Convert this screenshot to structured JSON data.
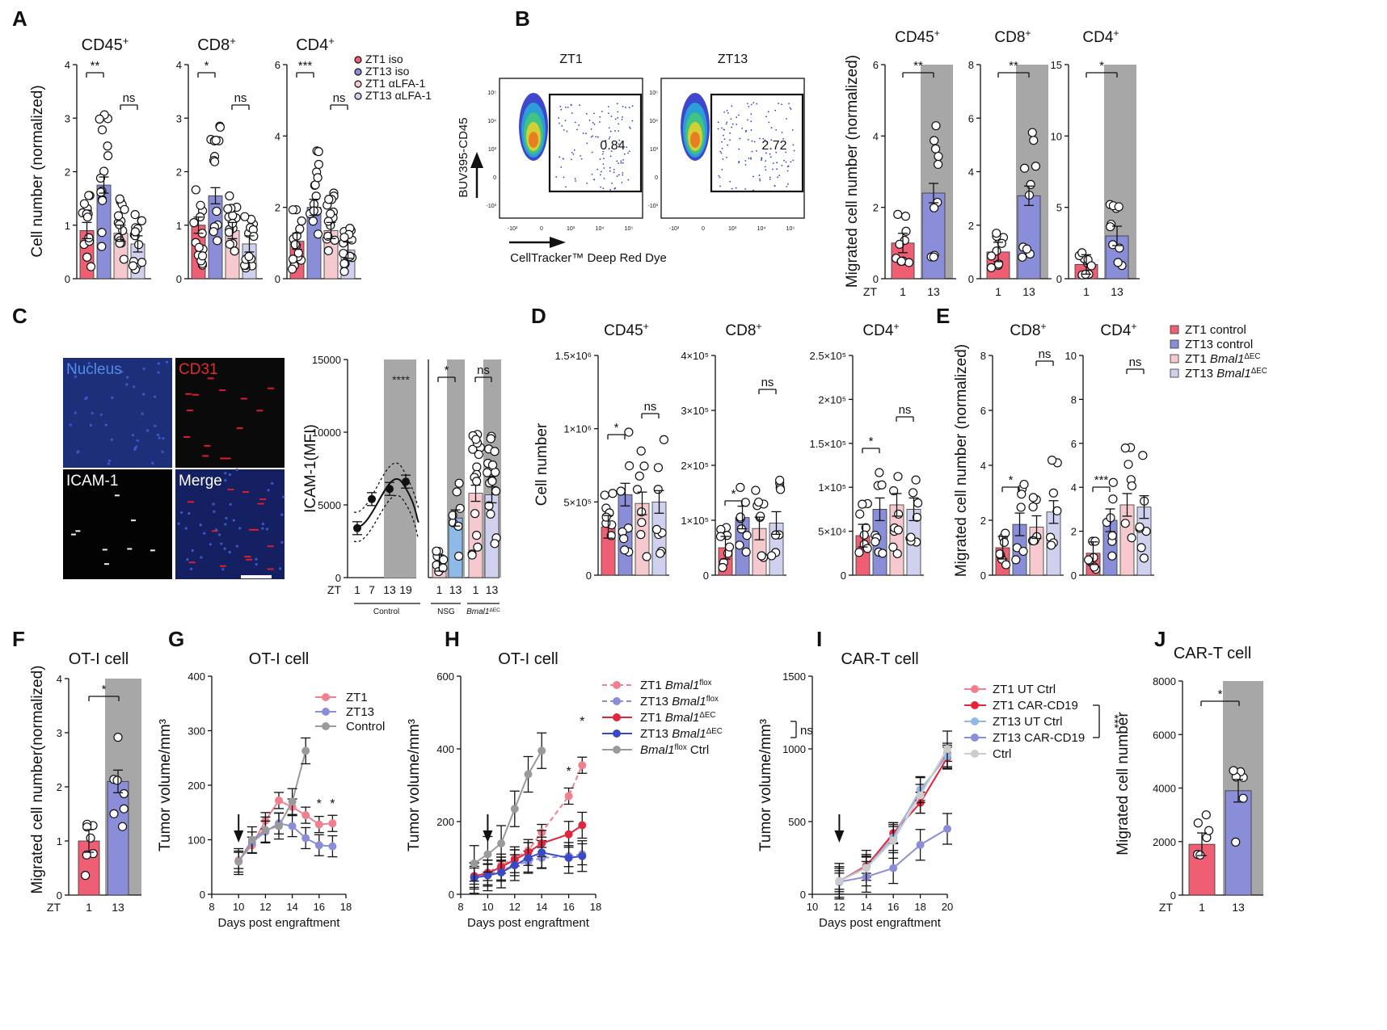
{
  "panels": {
    "A": "A",
    "B": "B",
    "C": "C",
    "D": "D",
    "E": "E",
    "F": "F",
    "G": "G",
    "H": "H",
    "I": "I",
    "J": "J"
  },
  "colors": {
    "zt1": "#ee5f73",
    "zt13": "#8a8ed8",
    "zt1_light": "#f6c9cf",
    "zt13_light": "#cfd1ee",
    "gray_bg": "#a7a7a7",
    "dark_gray": "#8c8c8c",
    "red_dark": "#e0253c",
    "blue_dark": "#3b48c6",
    "light_blue": "#8fb9e6",
    "light_gray": "#cccccc"
  },
  "chart_data": [
    {
      "id": "A",
      "type": "bar",
      "ylabel": "Cell number (normalized)",
      "legend": [
        "ZT1 iso",
        "ZT13 iso",
        "ZT1 αLFA-1",
        "ZT13 αLFA-1"
      ],
      "subplots": [
        {
          "title": "CD45",
          "title_sup": "+",
          "ylim": [
            0,
            4
          ],
          "yticks": [
            "0",
            "1",
            "2",
            "3",
            "4"
          ],
          "values": [
            0.9,
            1.75,
            0.85,
            0.65
          ],
          "sig": [
            {
              "a": 0,
              "b": 1,
              "label": "**"
            },
            {
              "a": 2,
              "b": 3,
              "label": "ns"
            }
          ]
        },
        {
          "title": "CD8",
          "title_sup": "+",
          "ylim": [
            0,
            4
          ],
          "yticks": [
            "0",
            "1",
            "2",
            "3",
            "4"
          ],
          "values": [
            1.0,
            1.55,
            0.9,
            0.65
          ],
          "sig": [
            {
              "a": 0,
              "b": 1,
              "label": "*"
            },
            {
              "a": 2,
              "b": 3,
              "label": "ns"
            }
          ]
        },
        {
          "title": "CD4",
          "title_sup": "+",
          "ylim": [
            0,
            6
          ],
          "yticks": [
            "0",
            "2",
            "4",
            "6"
          ],
          "values": [
            1.05,
            2.0,
            1.35,
            0.8
          ],
          "sig": [
            {
              "a": 0,
              "b": 1,
              "label": "***"
            },
            {
              "a": 2,
              "b": 3,
              "label": "ns"
            }
          ]
        }
      ]
    },
    {
      "id": "B_flow",
      "type": "scatter",
      "ylabel": "BUV395-CD45",
      "xlabel": "CellTracker™ Deep Red Dye",
      "subplots": [
        {
          "title": "ZT1",
          "gate_value": "0.84"
        },
        {
          "title": "ZT13",
          "gate_value": "2.72"
        }
      ],
      "yticks": [
        "10⁵",
        "10⁴",
        "10³",
        "0",
        "-10³"
      ],
      "xticks": [
        "-10³",
        "0",
        "10³",
        "10⁴",
        "10⁵"
      ]
    },
    {
      "id": "B",
      "type": "bar",
      "ylabel": "Migrated cell number (normalized)",
      "xaxis_name": "ZT",
      "categories": [
        "1",
        "13"
      ],
      "subplots": [
        {
          "title": "CD45",
          "title_sup": "+",
          "ylim": [
            0,
            6
          ],
          "yticks": [
            "0",
            "2",
            "4",
            "6"
          ],
          "values": [
            1.0,
            2.4
          ],
          "sig": "**"
        },
        {
          "title": "CD8",
          "title_sup": "+",
          "ylim": [
            0,
            8
          ],
          "yticks": [
            "0",
            "2",
            "4",
            "6",
            "8"
          ],
          "values": [
            1.0,
            3.1
          ],
          "sig": "**"
        },
        {
          "title": "CD4",
          "title_sup": "+",
          "ylim": [
            0,
            15
          ],
          "yticks": [
            "0",
            "5",
            "10",
            "15"
          ],
          "values": [
            1.0,
            3.0
          ],
          "sig": "*"
        }
      ]
    },
    {
      "id": "C_images",
      "labels": [
        "Nucleus",
        "CD31",
        "ICAM-1",
        "Merge"
      ]
    },
    {
      "id": "C",
      "type": "line",
      "ylabel": "ICAM-1(MFI)",
      "xaxis_name": "ZT",
      "ylim": [
        0,
        15000
      ],
      "yticks": [
        "0",
        "5000",
        "10000",
        "15000"
      ],
      "curve": {
        "x": [
          "1",
          "7",
          "13",
          "19"
        ],
        "y": [
          3400,
          5400,
          6100,
          6600
        ]
      },
      "curve_sig": "****",
      "bars": {
        "values": [
          1000,
          4100,
          5800,
          5700
        ],
        "sig": [
          {
            "label": "*"
          },
          {
            "label": "ns"
          }
        ],
        "groups": [
          "NSG",
          "Bmal1"
        ],
        "group_sup": "ΔEC",
        "categories": [
          "1",
          "13",
          "1",
          "13"
        ]
      },
      "group_label": "Control"
    },
    {
      "id": "D",
      "type": "bar",
      "ylabel": "Cell number",
      "subplots": [
        {
          "title": "CD45",
          "title_sup": "+",
          "yticks": [
            "0",
            "5×10⁵",
            "1×10⁶",
            "1.5×10⁶"
          ],
          "ylim": [
            0,
            1500000
          ],
          "values": [
            330000,
            550000,
            490000,
            500000
          ],
          "sig": [
            {
              "a": 0,
              "b": 1,
              "label": "*"
            },
            {
              "a": 2,
              "b": 3,
              "label": "ns"
            }
          ]
        },
        {
          "title": "CD8",
          "title_sup": "+",
          "yticks": [
            "0",
            "1×10⁵",
            "2×10⁵",
            "3×10⁵",
            "4×10⁵"
          ],
          "ylim": [
            0,
            400000
          ],
          "values": [
            50000,
            105000,
            85000,
            95000
          ],
          "sig": [
            {
              "a": 0,
              "b": 1,
              "label": "*"
            },
            {
              "a": 2,
              "b": 3,
              "label": "ns"
            }
          ]
        },
        {
          "title": "CD4",
          "title_sup": "+",
          "yticks": [
            "0",
            "5×10⁴",
            "1×10⁵",
            "1.5×10⁵",
            "2×10⁵",
            "2.5×10⁵"
          ],
          "ylim": [
            0,
            250000
          ],
          "values": [
            45000,
            75000,
            80000,
            75000
          ],
          "sig": [
            {
              "a": 0,
              "b": 1,
              "label": "*"
            },
            {
              "a": 2,
              "b": 3,
              "label": "ns"
            }
          ]
        }
      ]
    },
    {
      "id": "E",
      "type": "bar",
      "ylabel": "Migrated cell number (normalized)",
      "legend": [
        {
          "text": "ZT1 control"
        },
        {
          "text": "ZT13 control"
        },
        {
          "text": "ZT1 ",
          "italic": "Bmal1",
          "sup": "ΔEC"
        },
        {
          "text": "ZT13 ",
          "italic": "Bmal1",
          "sup": "ΔEC"
        }
      ],
      "subplots": [
        {
          "title": "CD8",
          "title_sup": "+",
          "ylim": [
            0,
            8
          ],
          "yticks": [
            "0",
            "2",
            "4",
            "6",
            "8"
          ],
          "values": [
            1.0,
            1.85,
            1.75,
            2.3
          ],
          "sig": [
            {
              "a": 0,
              "b": 1,
              "label": "*"
            },
            {
              "a": 2,
              "b": 3,
              "label": "ns"
            }
          ]
        },
        {
          "title": "CD4",
          "title_sup": "+",
          "ylim": [
            0,
            10
          ],
          "yticks": [
            "0",
            "2",
            "4",
            "6",
            "8",
            "10"
          ],
          "values": [
            1.0,
            2.5,
            3.2,
            3.1
          ],
          "sig": [
            {
              "a": 0,
              "b": 1,
              "label": "***"
            },
            {
              "a": 2,
              "b": 3,
              "label": "ns"
            }
          ]
        }
      ]
    },
    {
      "id": "F",
      "type": "bar",
      "title": "OT-I cell",
      "ylabel": "Migrated cell number(normalized)",
      "xaxis_name": "ZT",
      "categories": [
        "1",
        "13"
      ],
      "values": [
        1.0,
        2.1
      ],
      "ylim": [
        0,
        4
      ],
      "yticks": [
        "0",
        "1",
        "2",
        "3",
        "4"
      ],
      "sig": "*"
    },
    {
      "id": "G",
      "type": "line",
      "title": "OT-I cell",
      "xlabel": "Days post engraftment",
      "ylabel": "Tumor volume/mm³",
      "xlim": [
        8,
        18
      ],
      "xticks": [
        "8",
        "10",
        "12",
        "14",
        "16",
        "18"
      ],
      "ylim": [
        0,
        400
      ],
      "yticks": [
        "0",
        "100",
        "200",
        "300",
        "400"
      ],
      "x": [
        10,
        11,
        12,
        13,
        14,
        15,
        16,
        17
      ],
      "series": [
        {
          "name": "ZT1",
          "values": [
            62,
            90,
            135,
            172,
            160,
            145,
            128,
            130
          ]
        },
        {
          "name": "ZT13",
          "values": [
            60,
            95,
            115,
            130,
            125,
            103,
            90,
            88
          ]
        },
        {
          "name": "Control",
          "values": [
            60,
            100,
            118,
            125,
            170,
            263,
            null,
            null
          ]
        }
      ],
      "sig": [
        "*",
        "*"
      ]
    },
    {
      "id": "H",
      "type": "line",
      "title": "OT-I cell",
      "xlabel": "Days post engraftment",
      "ylabel": "Tumor volume/mm³",
      "xlim": [
        8,
        18
      ],
      "xticks": [
        "8",
        "10",
        "12",
        "14",
        "16",
        "18"
      ],
      "ylim": [
        0,
        600
      ],
      "yticks": [
        "0",
        "200",
        "400",
        "600"
      ],
      "x": [
        9,
        10,
        11,
        12,
        13,
        14,
        16,
        17
      ],
      "series": [
        {
          "name": "ZT1 Bmal1flox",
          "italic": "Bmal1",
          "sup": "flox",
          "prefix": "ZT1 ",
          "values": [
            50,
            60,
            80,
            100,
            120,
            170,
            270,
            355
          ]
        },
        {
          "name": "ZT13 Bmal1flox",
          "italic": "Bmal1",
          "sup": "flox",
          "prefix": "ZT13 ",
          "values": [
            48,
            55,
            65,
            80,
            90,
            100,
            105,
            110
          ]
        },
        {
          "name": "ZT1 Bmal1ΔEC",
          "italic": "Bmal1",
          "sup": "ΔEC",
          "prefix": "ZT1 ",
          "values": [
            50,
            58,
            75,
            95,
            115,
            140,
            165,
            190
          ]
        },
        {
          "name": "ZT13 Bmal1ΔEC",
          "italic": "Bmal1",
          "sup": "ΔEC",
          "prefix": "ZT13 ",
          "values": [
            45,
            52,
            60,
            80,
            100,
            115,
            100,
            105
          ]
        },
        {
          "name": "Bmal1flox Ctrl",
          "italic": "Bmal1",
          "sup": "flox",
          "prefix": "",
          "suffix": " Ctrl",
          "values": [
            85,
            110,
            140,
            235,
            330,
            395,
            null,
            null
          ]
        }
      ],
      "sig": [
        "*",
        "*"
      ],
      "bracket_label": "ns"
    },
    {
      "id": "I",
      "type": "line",
      "title": "CAR-T cell",
      "xlabel": "Days post engraftment",
      "ylabel": "Tumor volume/mm³",
      "xlim": [
        10,
        20
      ],
      "xticks": [
        "10",
        "12",
        "14",
        "16",
        "18",
        "20"
      ],
      "ylim": [
        0,
        1500
      ],
      "yticks": [
        "0",
        "500",
        "1000",
        "1500"
      ],
      "x": [
        12,
        14,
        16,
        18,
        20
      ],
      "series": [
        {
          "name": "ZT1 UT Ctrl",
          "values": [
            90,
            200,
            410,
            700,
            970
          ]
        },
        {
          "name": "ZT1 CAR-CD19",
          "values": [
            90,
            190,
            420,
            630,
            940
          ]
        },
        {
          "name": "ZT13 UT Ctrl",
          "values": [
            90,
            185,
            390,
            720,
            950
          ]
        },
        {
          "name": "ZT13 CAR-CD19",
          "values": [
            85,
            120,
            180,
            340,
            450
          ]
        },
        {
          "name": "Ctrl",
          "values": [
            90,
            180,
            370,
            680,
            1000
          ]
        }
      ],
      "bracket_label": "***"
    },
    {
      "id": "J",
      "type": "bar",
      "title": "CAR-T cell",
      "ylabel": "Migrated cell number",
      "xaxis_name": "ZT",
      "categories": [
        "1",
        "13"
      ],
      "values": [
        1900,
        3900
      ],
      "ylim": [
        0,
        8000
      ],
      "yticks": [
        "0",
        "2000",
        "4000",
        "6000",
        "8000"
      ],
      "sig": "*"
    }
  ]
}
